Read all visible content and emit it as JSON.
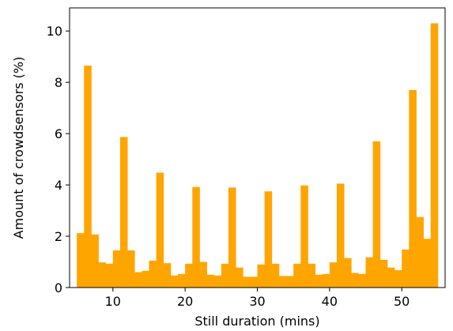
{
  "chart_data": {
    "type": "bar",
    "title": "",
    "xlabel": "Still duration (mins)",
    "ylabel": "Amount of crowdsensors (%)",
    "xlim": [
      4,
      56
    ],
    "ylim": [
      0,
      10.9
    ],
    "xticks": [
      10,
      20,
      30,
      40,
      50
    ],
    "yticks": [
      0,
      2,
      4,
      6,
      8,
      10
    ],
    "bin_start": 5,
    "bin_width": 1,
    "bar_color": "#FFA500",
    "grid": false,
    "legend": "none",
    "values": [
      2.12,
      8.65,
      2.07,
      0.98,
      0.93,
      1.45,
      5.87,
      1.45,
      0.6,
      0.65,
      1.05,
      4.48,
      0.95,
      0.47,
      0.53,
      0.93,
      3.92,
      1.0,
      0.5,
      0.47,
      0.93,
      3.9,
      0.78,
      0.42,
      0.42,
      0.9,
      3.75,
      0.93,
      0.45,
      0.45,
      0.93,
      3.98,
      0.93,
      0.5,
      0.53,
      0.98,
      4.05,
      1.15,
      0.57,
      0.53,
      1.18,
      5.7,
      1.08,
      0.78,
      0.68,
      1.48,
      7.7,
      2.75,
      1.9,
      10.3
    ]
  }
}
